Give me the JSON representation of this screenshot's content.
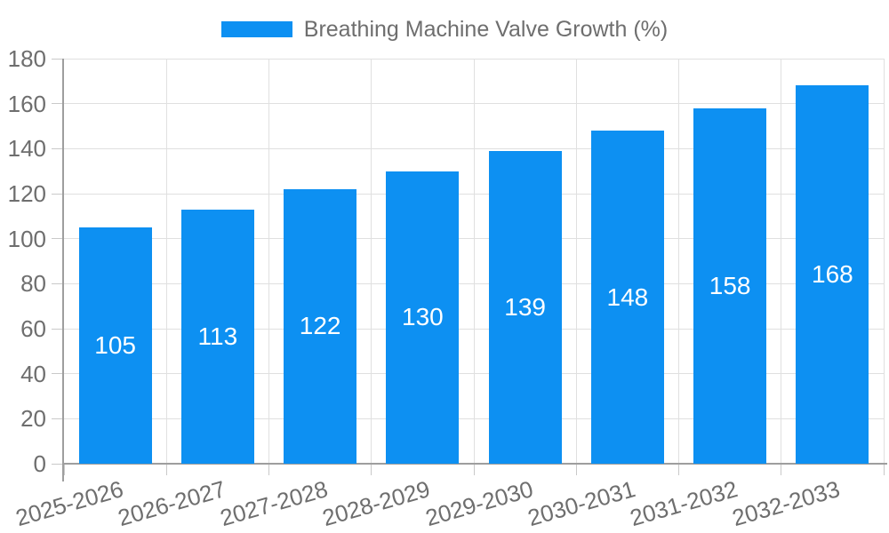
{
  "chart_data": {
    "type": "bar",
    "title": "Breathing Machine Valve Growth (%)",
    "categories": [
      "2025-2026",
      "2026-2027",
      "2027-2028",
      "2028-2029",
      "2029-2030",
      "2030-2031",
      "2031-2032",
      "2032-2033"
    ],
    "values": [
      105,
      113,
      122,
      130,
      139,
      148,
      158,
      168
    ],
    "value_labels": [
      "105",
      "113",
      "122",
      "130",
      "139",
      "148",
      "158",
      "168"
    ],
    "ytick_labels": [
      "0",
      "20",
      "40",
      "60",
      "80",
      "100",
      "120",
      "140",
      "160",
      "180"
    ],
    "ylim": [
      0,
      180
    ],
    "ytick_step": 20,
    "xlabel": "",
    "ylabel": "",
    "grid": true,
    "legend_position": "top",
    "x_label_rotation_deg": -16
  },
  "colors": {
    "bar_fill": "#0D90F2",
    "bar_value_text": "#FFFFFF",
    "axis_text": "#6E6E6E",
    "legend_text": "#6E6E6E",
    "axis_line": "#9E9E9E",
    "gridline": "#E0E0E0",
    "tick": "#C9C9C9",
    "background": "#FFFFFF"
  }
}
